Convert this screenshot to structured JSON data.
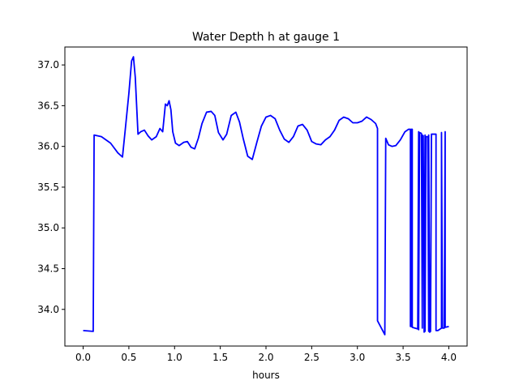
{
  "chart_data": {
    "type": "line",
    "title": "Water Depth h at gauge 1",
    "xlabel": "hours",
    "ylabel": "",
    "xlim": [
      -0.2,
      4.2
    ],
    "ylim": [
      33.55,
      37.22
    ],
    "grid": false,
    "x_ticks": [
      0.0,
      0.5,
      1.0,
      1.5,
      2.0,
      2.5,
      3.0,
      3.5,
      4.0
    ],
    "x_tick_labels": [
      "0.0",
      "0.5",
      "1.0",
      "1.5",
      "2.0",
      "2.5",
      "3.0",
      "3.5",
      "4.0"
    ],
    "y_ticks": [
      34.0,
      34.5,
      35.0,
      35.5,
      36.0,
      36.5,
      37.0
    ],
    "y_tick_labels": [
      "34.0",
      "34.5",
      "35.0",
      "35.5",
      "36.0",
      "36.5",
      "37.0"
    ],
    "series": [
      {
        "color": "#0000ff",
        "x": [
          0.0,
          0.11,
          0.12,
          0.2,
          0.3,
          0.38,
          0.43,
          0.46,
          0.5,
          0.53,
          0.55,
          0.57,
          0.6,
          0.63,
          0.67,
          0.71,
          0.75,
          0.8,
          0.84,
          0.87,
          0.9,
          0.92,
          0.94,
          0.96,
          0.98,
          1.01,
          1.05,
          1.1,
          1.14,
          1.18,
          1.22,
          1.26,
          1.3,
          1.35,
          1.4,
          1.44,
          1.48,
          1.53,
          1.57,
          1.62,
          1.67,
          1.71,
          1.75,
          1.8,
          1.85,
          1.9,
          1.95,
          2.0,
          2.05,
          2.1,
          2.15,
          2.2,
          2.25,
          2.3,
          2.35,
          2.4,
          2.45,
          2.5,
          2.55,
          2.6,
          2.65,
          2.7,
          2.75,
          2.8,
          2.85,
          2.9,
          2.95,
          3.0,
          3.05,
          3.1,
          3.15,
          3.2,
          3.22,
          3.22,
          3.3,
          3.31,
          3.34,
          3.38,
          3.42,
          3.47,
          3.52,
          3.56,
          3.58,
          3.58,
          3.59,
          3.59,
          3.6,
          3.6,
          3.66,
          3.67,
          3.67,
          3.68,
          3.7,
          3.71,
          3.71,
          3.72,
          3.73,
          3.74,
          3.74,
          3.75,
          3.77,
          3.78,
          3.78,
          3.79,
          3.8,
          3.81,
          3.86,
          3.86,
          3.88,
          3.92,
          3.92,
          3.93,
          3.95,
          3.96,
          3.96,
          4.0
        ],
        "y": [
          33.74,
          33.73,
          36.14,
          36.12,
          36.04,
          35.92,
          35.87,
          36.2,
          36.65,
          37.05,
          37.1,
          36.85,
          36.15,
          36.18,
          36.2,
          36.13,
          36.08,
          36.12,
          36.22,
          36.18,
          36.52,
          36.5,
          36.56,
          36.45,
          36.18,
          36.04,
          36.01,
          36.05,
          36.06,
          35.99,
          35.97,
          36.1,
          36.28,
          36.42,
          36.43,
          36.38,
          36.17,
          36.08,
          36.15,
          36.38,
          36.42,
          36.3,
          36.1,
          35.88,
          35.84,
          36.05,
          36.25,
          36.36,
          36.38,
          36.34,
          36.2,
          36.09,
          36.05,
          36.12,
          36.25,
          36.27,
          36.2,
          36.06,
          36.03,
          36.02,
          36.08,
          36.12,
          36.2,
          36.32,
          36.36,
          36.34,
          36.29,
          36.29,
          36.31,
          36.36,
          36.33,
          36.28,
          36.22,
          33.86,
          33.69,
          36.1,
          36.02,
          36.0,
          36.01,
          36.08,
          36.18,
          36.21,
          36.21,
          33.79,
          33.79,
          36.21,
          36.21,
          33.78,
          33.76,
          36.18,
          33.75,
          36.17,
          36.16,
          33.77,
          36.14,
          36.13,
          33.72,
          36.14,
          33.73,
          36.12,
          36.12,
          33.73,
          36.14,
          33.72,
          33.73,
          36.15,
          36.15,
          33.74,
          33.74,
          33.77,
          36.17,
          33.77,
          33.77,
          36.18,
          33.78,
          33.79
        ]
      }
    ]
  }
}
